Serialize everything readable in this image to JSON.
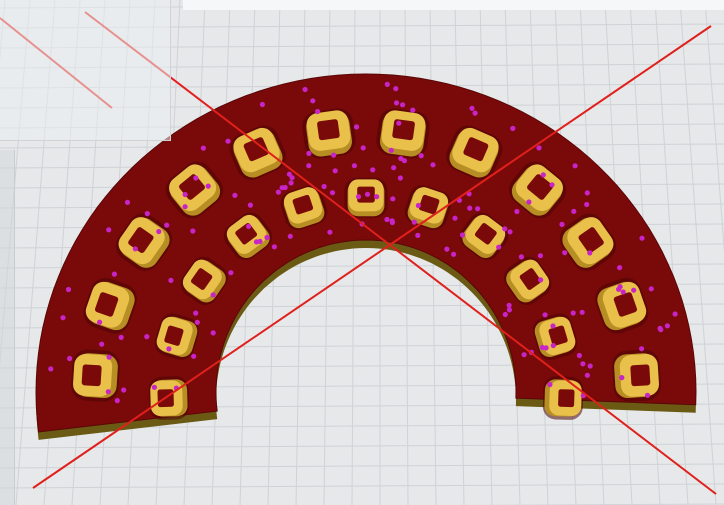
{
  "viewer": {
    "title": "",
    "background_color": "#e6e8ea",
    "grid_color": "#cfd3d6"
  },
  "model": {
    "name": "",
    "base_color": "#7a0a0a",
    "base_edge_color": "#6b5a14",
    "cup_color": "#e8c04a",
    "cup_shadow_color": "#b68e24",
    "support_point_color": "#c824c8",
    "rejection_mark_color": "#e0201c",
    "outer_ring_cups": 12,
    "inner_ring_cups": 11
  }
}
